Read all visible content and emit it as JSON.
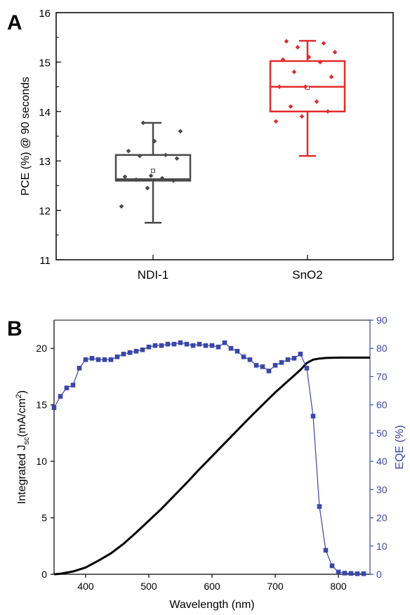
{
  "chart_data": [
    {
      "type": "box",
      "panel_label": "A",
      "ylabel": "PCE (%) @ 90 seconds",
      "ylim": [
        11,
        16
      ],
      "yticks": [
        11,
        12,
        13,
        14,
        15,
        16
      ],
      "categories": [
        "NDI-1",
        "SnO2"
      ],
      "colors": [
        "#4a4a4a",
        "#e32b2b"
      ],
      "boxes": [
        {
          "name": "NDI-1",
          "whisker_low": 11.75,
          "q1": 12.6,
          "median": 12.63,
          "mean": 12.8,
          "q3": 13.12,
          "whisker_high": 13.77
        },
        {
          "name": "SnO2",
          "whisker_low": 13.1,
          "q1": 14.0,
          "median": 14.5,
          "mean": 14.48,
          "q3": 15.02,
          "whisker_high": 15.43
        }
      ],
      "points": [
        [
          12.08,
          12.45,
          12.6,
          12.62,
          12.65,
          12.68,
          12.7,
          13.05,
          13.1,
          13.12,
          13.2,
          13.4,
          13.6,
          13.77
        ],
        [
          13.8,
          13.9,
          14.0,
          14.1,
          14.2,
          14.5,
          14.5,
          14.7,
          14.8,
          15.0,
          15.05,
          15.1,
          15.2,
          15.3,
          15.38,
          15.42
        ]
      ]
    },
    {
      "type": "line",
      "panel_label": "B",
      "xlabel": "Wavelength (nm)",
      "ylabel_left": "Integrated J",
      "ylabel_left_sub": "sc",
      "ylabel_left_unit": "(mA/cm",
      "ylabel_left_sup": "2",
      "ylabel_left_end": ")",
      "ylabel_right": "EQE (%)",
      "xlim": [
        350,
        850
      ],
      "xticks": [
        400,
        500,
        600,
        700,
        800
      ],
      "ylim_left": [
        0,
        22.5
      ],
      "yticks_left": [
        0,
        5,
        10,
        15,
        20
      ],
      "ylim_right": [
        0,
        90
      ],
      "yticks_right": [
        0,
        10,
        20,
        30,
        40,
        50,
        60,
        70,
        80,
        90
      ],
      "series": [
        {
          "axis": "left",
          "color": "#000000",
          "x": [
            350,
            360,
            380,
            400,
            420,
            440,
            460,
            480,
            500,
            520,
            540,
            560,
            580,
            600,
            620,
            640,
            660,
            680,
            700,
            720,
            740,
            750,
            760,
            770,
            780,
            800,
            820,
            850
          ],
          "y": [
            0,
            0.05,
            0.25,
            0.6,
            1.2,
            1.85,
            2.7,
            3.7,
            4.75,
            5.8,
            6.95,
            8.1,
            9.3,
            10.45,
            11.6,
            12.75,
            13.9,
            15.0,
            16.1,
            17.1,
            18.1,
            18.7,
            19.0,
            19.1,
            19.15,
            19.18,
            19.18,
            19.18
          ]
        },
        {
          "axis": "right",
          "color": "#3a47a8",
          "x": [
            350,
            360,
            370,
            380,
            390,
            400,
            410,
            420,
            430,
            440,
            450,
            460,
            470,
            480,
            490,
            500,
            510,
            520,
            530,
            540,
            550,
            560,
            570,
            580,
            590,
            600,
            610,
            620,
            630,
            640,
            650,
            660,
            670,
            680,
            690,
            700,
            710,
            720,
            730,
            740,
            750,
            760,
            770,
            780,
            790,
            800,
            810,
            820,
            830,
            840
          ],
          "y": [
            59,
            63,
            66,
            67,
            73,
            76,
            76.5,
            76,
            76,
            76,
            77,
            78,
            78.5,
            79,
            79.5,
            80.5,
            81,
            81,
            81.5,
            81.5,
            82,
            81.5,
            81,
            81.5,
            81,
            81,
            80.5,
            82,
            80,
            79,
            77,
            76,
            74,
            73.5,
            72,
            74,
            75,
            76,
            76.5,
            78,
            73,
            56,
            24,
            8.5,
            3,
            0.8,
            0.4,
            0.3,
            0.2,
            0.2
          ]
        }
      ]
    }
  ]
}
